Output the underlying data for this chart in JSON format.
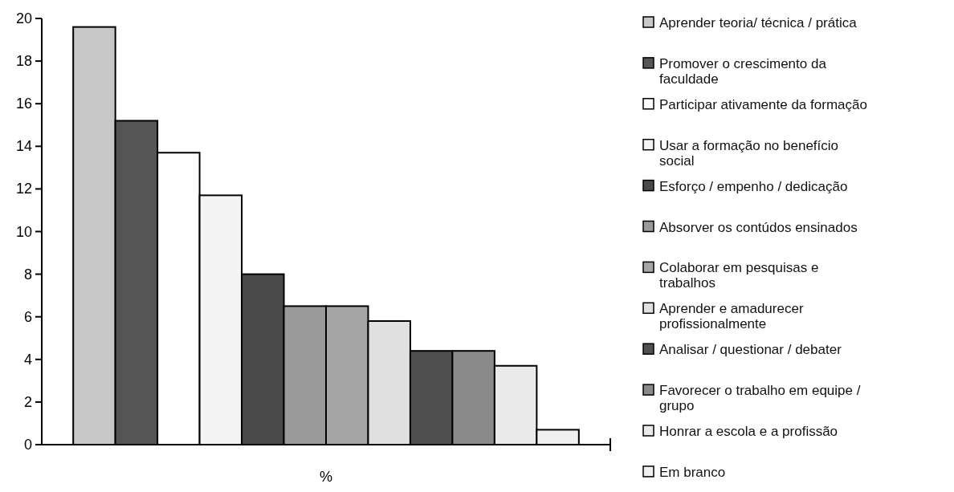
{
  "chart_data": {
    "type": "bar",
    "xlabel": "%",
    "categories": [
      null
    ],
    "ylim": [
      0,
      20
    ],
    "yticks": [
      0,
      2,
      4,
      6,
      8,
      10,
      12,
      14,
      16,
      18,
      20
    ],
    "grid": false,
    "legend": "right",
    "series": [
      {
        "name": "Aprender teoria/ técnica / prática",
        "color": "#c8c8c8",
        "values": [
          19.6
        ]
      },
      {
        "name": "Promover o crescimento da faculdade",
        "color": "#555555",
        "values": [
          15.2
        ]
      },
      {
        "name": "Participar ativamente da formação",
        "color": "#ffffff",
        "values": [
          13.7
        ]
      },
      {
        "name": "Usar a formação no benefício social",
        "color": "#f4f4f4",
        "values": [
          11.7
        ]
      },
      {
        "name": "Esforço / empenho / dedicação",
        "color": "#4a4a4a",
        "values": [
          8.0
        ]
      },
      {
        "name": "Absorver os contúdos ensinados",
        "color": "#9a9a9a",
        "values": [
          6.5
        ]
      },
      {
        "name": "Colaborar em pesquisas e trabalhos",
        "color": "#a6a6a6",
        "values": [
          6.5
        ]
      },
      {
        "name": "Aprender e amadurecer profissionalmente",
        "color": "#e0e0e0",
        "values": [
          5.8
        ]
      },
      {
        "name": "Analisar / questionar / debater",
        "color": "#505050",
        "values": [
          4.4
        ]
      },
      {
        "name": "Favorecer o trabalho em equipe / grupo",
        "color": "#8a8a8a",
        "values": [
          4.4
        ]
      },
      {
        "name": "Honrar a escola e a profissão",
        "color": "#eaeaea",
        "values": [
          3.7
        ]
      },
      {
        "name": "Em branco",
        "color": "#f0f0f0",
        "values": [
          0.7
        ]
      }
    ]
  }
}
